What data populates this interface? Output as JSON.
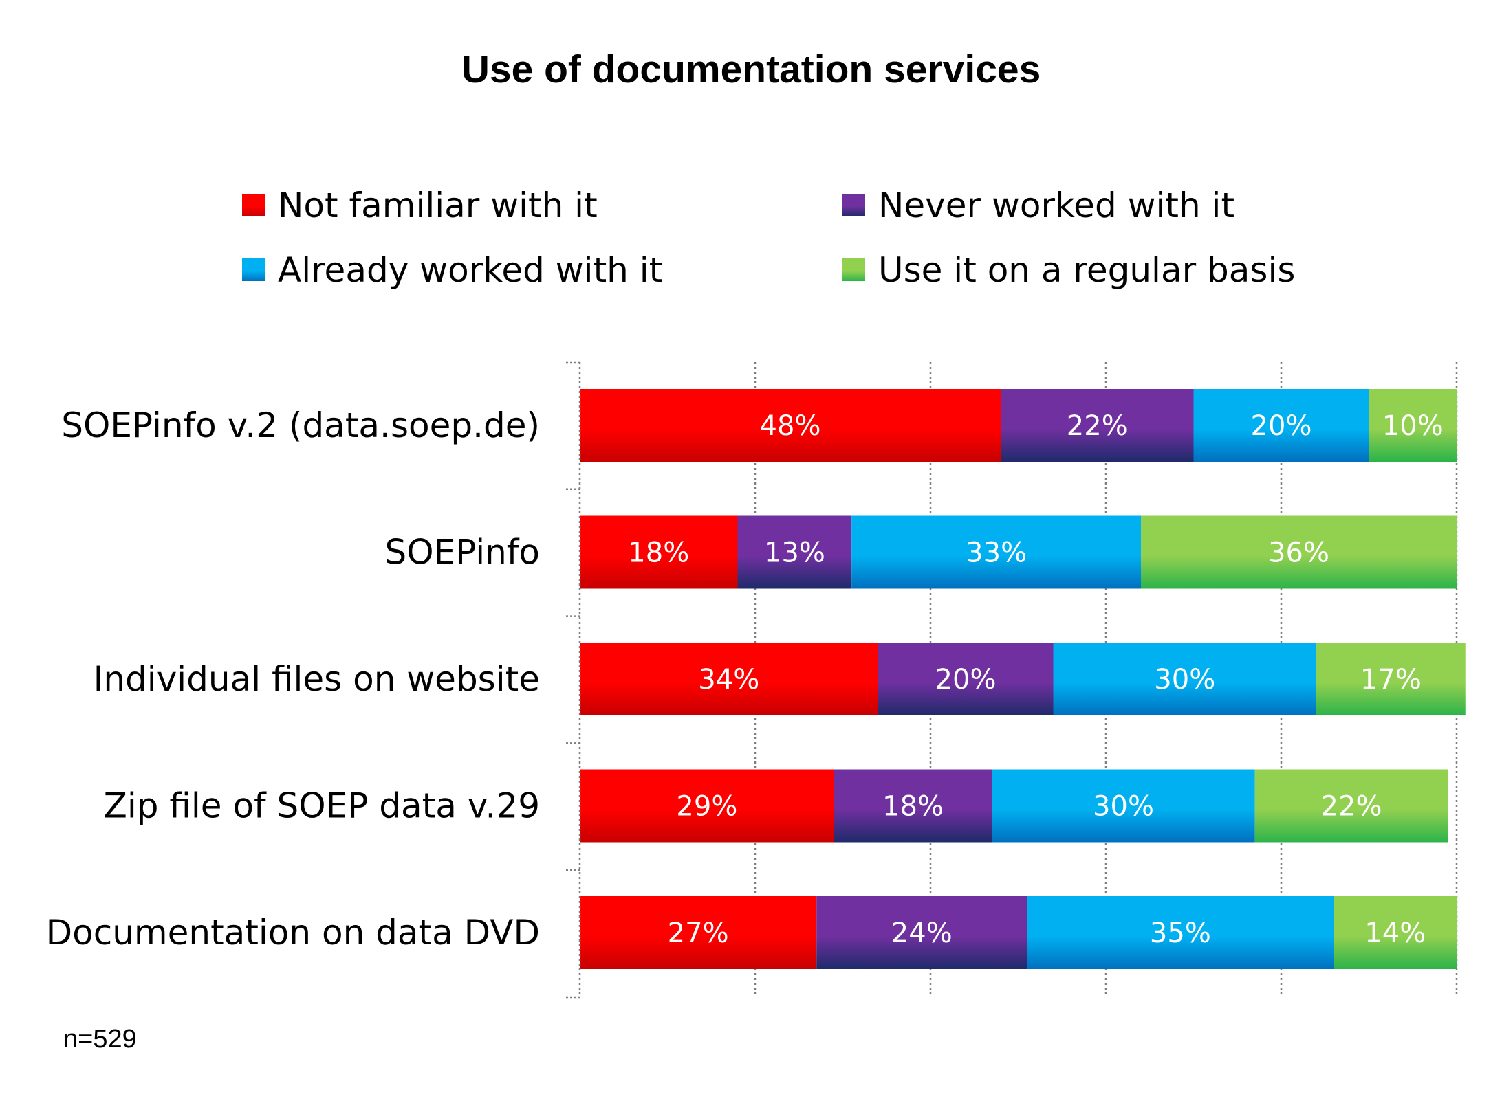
{
  "chart_data": {
    "type": "bar",
    "orientation": "horizontal",
    "stacked": true,
    "title": "Use of documentation services",
    "categories": [
      "SOEPinfo v.2 (data.soep.de)",
      "SOEPinfo",
      "Individual files on website",
      "Zip file of SOEP data v.29",
      "Documentation on data DVD"
    ],
    "series": [
      {
        "name": "Not familiar with it",
        "color": "#ff0000",
        "values": [
          48,
          18,
          34,
          29,
          27
        ],
        "labels": [
          "48%",
          "18%",
          "34%",
          "29%",
          "27%"
        ]
      },
      {
        "name": "Never worked with it",
        "color": "#7030a0",
        "values": [
          22,
          13,
          20,
          18,
          24
        ],
        "labels": [
          "22%",
          "13%",
          "20%",
          "18%",
          "24%"
        ]
      },
      {
        "name": "Already worked with it",
        "color": "#00b0f0",
        "values": [
          20,
          33,
          30,
          30,
          35
        ],
        "labels": [
          "20%",
          "33%",
          "30%",
          "30%",
          "35%"
        ]
      },
      {
        "name": "Use it on a regular basis",
        "color": "#92d050",
        "values": [
          10,
          36,
          17,
          22,
          14
        ],
        "labels": [
          "10%",
          "36%",
          "17%",
          "22%",
          "14%"
        ]
      }
    ],
    "xlim": [
      0,
      100
    ],
    "grid": true,
    "legend_position": "top",
    "note": "n=529"
  }
}
